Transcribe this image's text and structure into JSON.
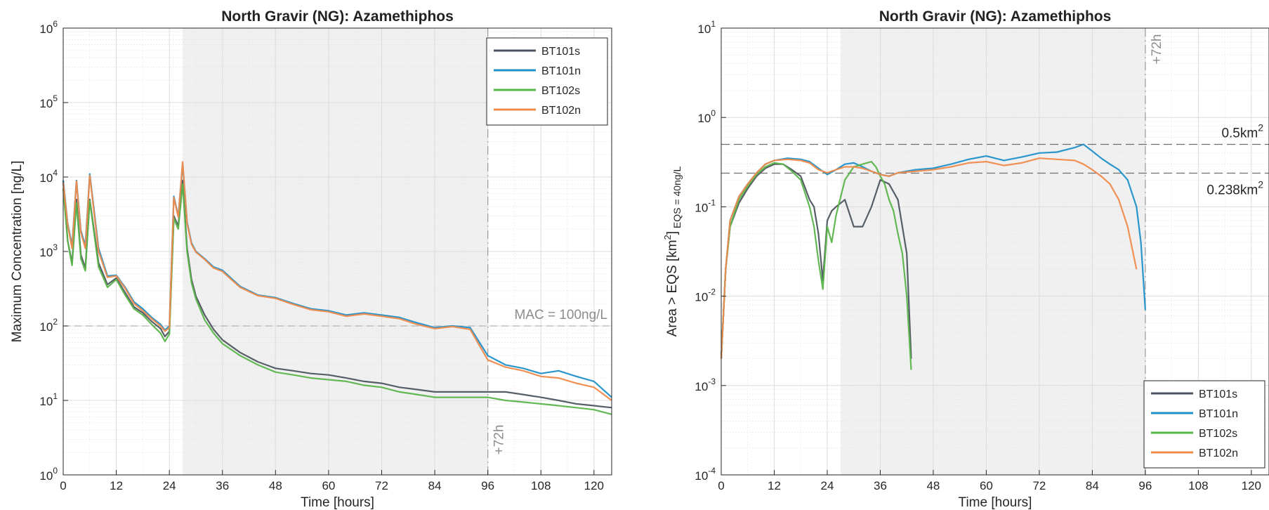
{
  "chart_data": [
    {
      "type": "line",
      "title": "North Gravir (NG): Azamethiphos",
      "xlabel": "Time [hours]",
      "ylabel": "Maximum Concentration [ng/L]",
      "yscale": "log",
      "xlim": [
        0,
        124
      ],
      "ylim": [
        1,
        1000000
      ],
      "x_ticks": [
        "0",
        "12",
        "24",
        "36",
        "48",
        "60",
        "72",
        "84",
        "96",
        "108",
        "120"
      ],
      "y_ticks": [
        {
          "base": "10",
          "exp": "0"
        },
        {
          "base": "10",
          "exp": "1"
        },
        {
          "base": "10",
          "exp": "2"
        },
        {
          "base": "10",
          "exp": "3"
        },
        {
          "base": "10",
          "exp": "4"
        },
        {
          "base": "10",
          "exp": "5"
        },
        {
          "base": "10",
          "exp": "6"
        }
      ],
      "grid": true,
      "legend": "top-right",
      "shaded_x": [
        27,
        96
      ],
      "annotations": {
        "mac_label": "MAC = 100ng/L",
        "mac_value": 100,
        "vline_label": "+72h",
        "vline_x": 96
      },
      "series": [
        {
          "name": "BT101s",
          "color": "#4d5560",
          "x": [
            0,
            1,
            2,
            3,
            4,
            5,
            6,
            8,
            10,
            12,
            14,
            16,
            18,
            20,
            22,
            23,
            24,
            25,
            26,
            27,
            28,
            29,
            30,
            32,
            34,
            36,
            40,
            44,
            48,
            52,
            56,
            60,
            64,
            68,
            72,
            76,
            80,
            84,
            88,
            92,
            96,
            100,
            104,
            108,
            112,
            116,
            120,
            124
          ],
          "y": [
            9000,
            1400,
            700,
            5000,
            900,
            600,
            5000,
            700,
            360,
            440,
            280,
            180,
            150,
            115,
            92,
            72,
            85,
            3000,
            2200,
            9000,
            1100,
            420,
            250,
            140,
            90,
            65,
            44,
            33,
            27,
            25,
            23,
            22,
            20,
            18,
            17,
            15,
            14,
            13,
            13,
            13,
            13,
            13,
            12,
            11,
            10,
            9,
            8.5,
            8
          ]
        },
        {
          "name": "BT101n",
          "color": "#1f90c8",
          "x": [
            0,
            1,
            2,
            3,
            4,
            5,
            6,
            8,
            10,
            12,
            14,
            16,
            18,
            20,
            22,
            23,
            24,
            25,
            26,
            27,
            28,
            29,
            30,
            32,
            34,
            36,
            40,
            44,
            48,
            52,
            56,
            60,
            64,
            68,
            72,
            76,
            80,
            84,
            88,
            92,
            96,
            100,
            104,
            108,
            112,
            116,
            120,
            124
          ],
          "y": [
            9000,
            2400,
            1200,
            9000,
            1900,
            1200,
            11000,
            1100,
            470,
            480,
            330,
            210,
            170,
            130,
            105,
            88,
            100,
            5500,
            3000,
            15000,
            2500,
            1300,
            1000,
            800,
            620,
            560,
            340,
            260,
            240,
            200,
            170,
            160,
            140,
            150,
            140,
            130,
            110,
            95,
            100,
            95,
            40,
            30,
            27,
            23,
            25,
            21,
            18,
            11
          ]
        },
        {
          "name": "BT102s",
          "color": "#5ab44a",
          "x": [
            0,
            1,
            2,
            3,
            4,
            5,
            6,
            8,
            10,
            12,
            14,
            16,
            18,
            20,
            22,
            23,
            24,
            25,
            26,
            27,
            28,
            29,
            30,
            32,
            34,
            36,
            40,
            44,
            48,
            52,
            56,
            60,
            64,
            68,
            72,
            76,
            80,
            84,
            88,
            92,
            96,
            100,
            104,
            108,
            112,
            116,
            120,
            124
          ],
          "y": [
            7000,
            1400,
            650,
            4500,
            800,
            550,
            4800,
            620,
            330,
            420,
            260,
            170,
            140,
            105,
            80,
            62,
            78,
            2800,
            2000,
            8000,
            1000,
            380,
            230,
            120,
            80,
            58,
            40,
            30,
            24,
            22,
            20,
            19,
            18,
            16,
            15,
            13,
            12,
            11,
            11,
            11,
            11,
            10,
            9.5,
            9,
            8.5,
            8,
            7.5,
            6.5
          ]
        },
        {
          "name": "BT102n",
          "color": "#f08a4b",
          "x": [
            0,
            1,
            2,
            3,
            4,
            5,
            6,
            8,
            10,
            12,
            14,
            16,
            18,
            20,
            22,
            23,
            24,
            25,
            26,
            27,
            28,
            29,
            30,
            32,
            34,
            36,
            40,
            44,
            48,
            52,
            56,
            60,
            64,
            68,
            72,
            76,
            80,
            84,
            88,
            92,
            96,
            100,
            104,
            108,
            112,
            116,
            120,
            124
          ],
          "y": [
            8500,
            2300,
            1100,
            8800,
            1800,
            1100,
            10500,
            1000,
            450,
            470,
            320,
            200,
            160,
            125,
            100,
            85,
            95,
            5300,
            2900,
            16000,
            2400,
            1250,
            980,
            780,
            600,
            540,
            330,
            255,
            235,
            195,
            165,
            155,
            135,
            145,
            135,
            125,
            105,
            92,
            98,
            90,
            35,
            28,
            25,
            21,
            20,
            17,
            15,
            10
          ]
        }
      ]
    },
    {
      "type": "line",
      "title": "North Gravir (NG): Azamethiphos",
      "xlabel": "Time [hours]",
      "ylabel_main": "Area > EQS [km",
      "ylabel_sup": "2",
      "ylabel_end": "]",
      "ylabel_sub": "EQS = 40ng/L",
      "yscale": "log",
      "xlim": [
        0,
        124
      ],
      "ylim": [
        0.0001,
        10
      ],
      "x_ticks": [
        "0",
        "12",
        "24",
        "36",
        "48",
        "60",
        "72",
        "84",
        "96",
        "108",
        "120"
      ],
      "y_ticks": [
        {
          "base": "10",
          "exp": "-4"
        },
        {
          "base": "10",
          "exp": "-3"
        },
        {
          "base": "10",
          "exp": "-2"
        },
        {
          "base": "10",
          "exp": "-1"
        },
        {
          "base": "10",
          "exp": "0"
        },
        {
          "base": "10",
          "exp": "1"
        }
      ],
      "grid": true,
      "legend": "bottom-right",
      "shaded_x": [
        27,
        96
      ],
      "annotations": {
        "hline1_label": "0.5km",
        "hline1_sup": "2",
        "hline1_value": 0.5,
        "hline2_label": "0.238km",
        "hline2_sup": "2",
        "hline2_value": 0.238,
        "vline_label": "+72h",
        "vline_x": 96
      },
      "series": [
        {
          "name": "BT101s",
          "color": "#4d5560",
          "x": [
            0,
            1,
            2,
            4,
            6,
            8,
            10,
            12,
            14,
            16,
            18,
            20,
            21,
            22,
            23,
            24,
            25,
            26,
            28,
            30,
            32,
            34,
            36,
            38,
            40,
            41,
            42,
            43
          ],
          "y": [
            0.002,
            0.02,
            0.06,
            0.11,
            0.16,
            0.22,
            0.27,
            0.3,
            0.3,
            0.26,
            0.22,
            0.12,
            0.1,
            0.05,
            0.015,
            0.07,
            0.09,
            0.1,
            0.12,
            0.06,
            0.06,
            0.1,
            0.2,
            0.18,
            0.12,
            0.06,
            0.03,
            0.002
          ]
        },
        {
          "name": "BT101n",
          "color": "#1f90c8",
          "x": [
            0,
            1,
            2,
            4,
            6,
            8,
            10,
            12,
            15,
            18,
            20,
            22,
            24,
            26,
            28,
            30,
            32,
            34,
            36,
            38,
            40,
            44,
            48,
            52,
            56,
            60,
            64,
            68,
            72,
            76,
            80,
            82,
            84,
            86,
            88,
            90,
            92,
            94,
            95,
            96
          ],
          "y": [
            0.002,
            0.02,
            0.07,
            0.13,
            0.18,
            0.24,
            0.3,
            0.33,
            0.35,
            0.34,
            0.32,
            0.27,
            0.23,
            0.26,
            0.3,
            0.31,
            0.28,
            0.25,
            0.23,
            0.22,
            0.24,
            0.26,
            0.27,
            0.3,
            0.34,
            0.37,
            0.33,
            0.36,
            0.4,
            0.41,
            0.46,
            0.5,
            0.42,
            0.35,
            0.3,
            0.26,
            0.2,
            0.1,
            0.04,
            0.007
          ]
        },
        {
          "name": "BT102s",
          "color": "#5ab44a",
          "x": [
            0,
            1,
            2,
            4,
            6,
            8,
            10,
            12,
            14,
            16,
            18,
            20,
            21,
            22,
            23,
            24,
            25,
            26,
            28,
            30,
            32,
            34,
            35,
            36,
            37,
            38,
            39,
            40,
            41,
            42,
            43
          ],
          "y": [
            0.002,
            0.02,
            0.06,
            0.12,
            0.17,
            0.23,
            0.28,
            0.31,
            0.3,
            0.25,
            0.2,
            0.1,
            0.06,
            0.025,
            0.012,
            0.06,
            0.04,
            0.08,
            0.2,
            0.28,
            0.3,
            0.32,
            0.28,
            0.22,
            0.18,
            0.12,
            0.09,
            0.05,
            0.03,
            0.01,
            0.0015
          ]
        },
        {
          "name": "BT102n",
          "color": "#f08a4b",
          "x": [
            0,
            1,
            2,
            4,
            6,
            8,
            10,
            12,
            15,
            18,
            20,
            22,
            24,
            26,
            28,
            30,
            32,
            34,
            36,
            38,
            40,
            44,
            48,
            52,
            56,
            60,
            64,
            68,
            72,
            76,
            80,
            82,
            84,
            86,
            88,
            90,
            92,
            94
          ],
          "y": [
            0.002,
            0.02,
            0.07,
            0.13,
            0.18,
            0.24,
            0.3,
            0.33,
            0.34,
            0.33,
            0.31,
            0.26,
            0.24,
            0.26,
            0.28,
            0.28,
            0.27,
            0.25,
            0.23,
            0.22,
            0.24,
            0.25,
            0.26,
            0.28,
            0.31,
            0.32,
            0.29,
            0.31,
            0.35,
            0.34,
            0.33,
            0.3,
            0.26,
            0.22,
            0.18,
            0.12,
            0.06,
            0.02
          ]
        }
      ]
    }
  ]
}
